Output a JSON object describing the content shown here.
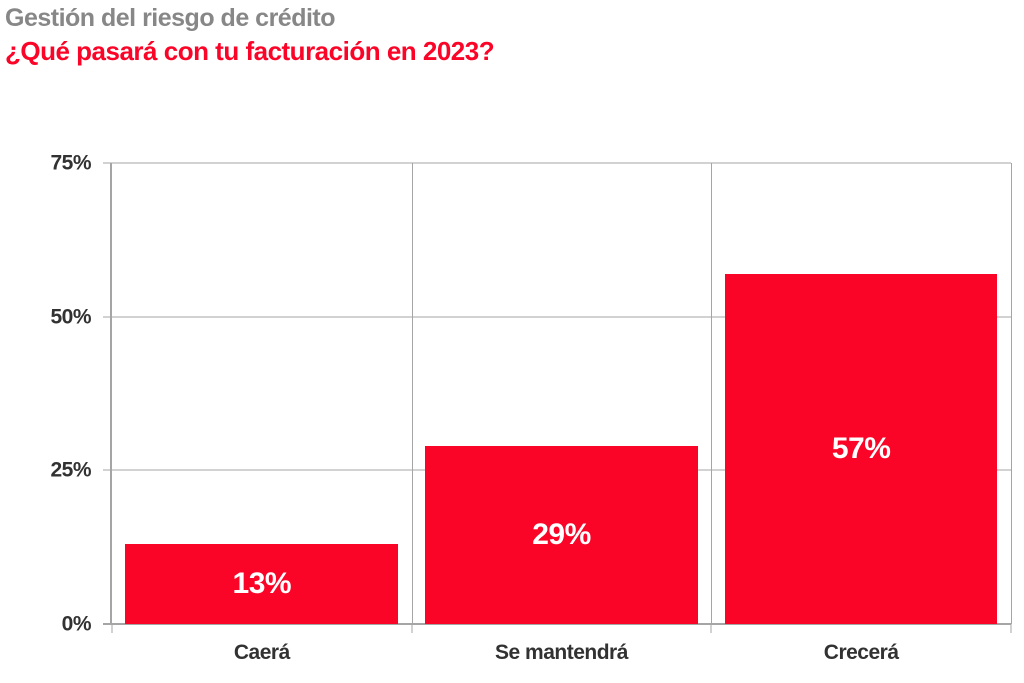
{
  "page": {
    "title": "Gestión del riesgo de crédito",
    "subtitle": "¿Qué pasará con tu facturación en 2023?"
  },
  "colors": {
    "title_gray": "#878787",
    "accent_red": "#FA0528",
    "grid_gray": "#A5A5A5",
    "axis_text_dark": "#323232",
    "bar_label_white": "#FFFFFF",
    "background": "#FFFFFF"
  },
  "chart_data": {
    "type": "bar",
    "title": "Gestión del riesgo de crédito",
    "subtitle": "¿Qué pasará con tu facturación en 2023?",
    "categories": [
      "Caerá",
      "Se mantendrá",
      "Crecerá"
    ],
    "values": [
      13,
      29,
      57
    ],
    "value_labels": [
      "13%",
      "29%",
      "57%"
    ],
    "xlabel": "",
    "ylabel": "",
    "ylim": [
      0,
      75
    ],
    "yticks": [
      0,
      25,
      50,
      75
    ],
    "ytick_labels": [
      "0%",
      "25%",
      "50%",
      "75%"
    ],
    "grid": true,
    "legend": "none",
    "bar_color": "#FA0528"
  }
}
